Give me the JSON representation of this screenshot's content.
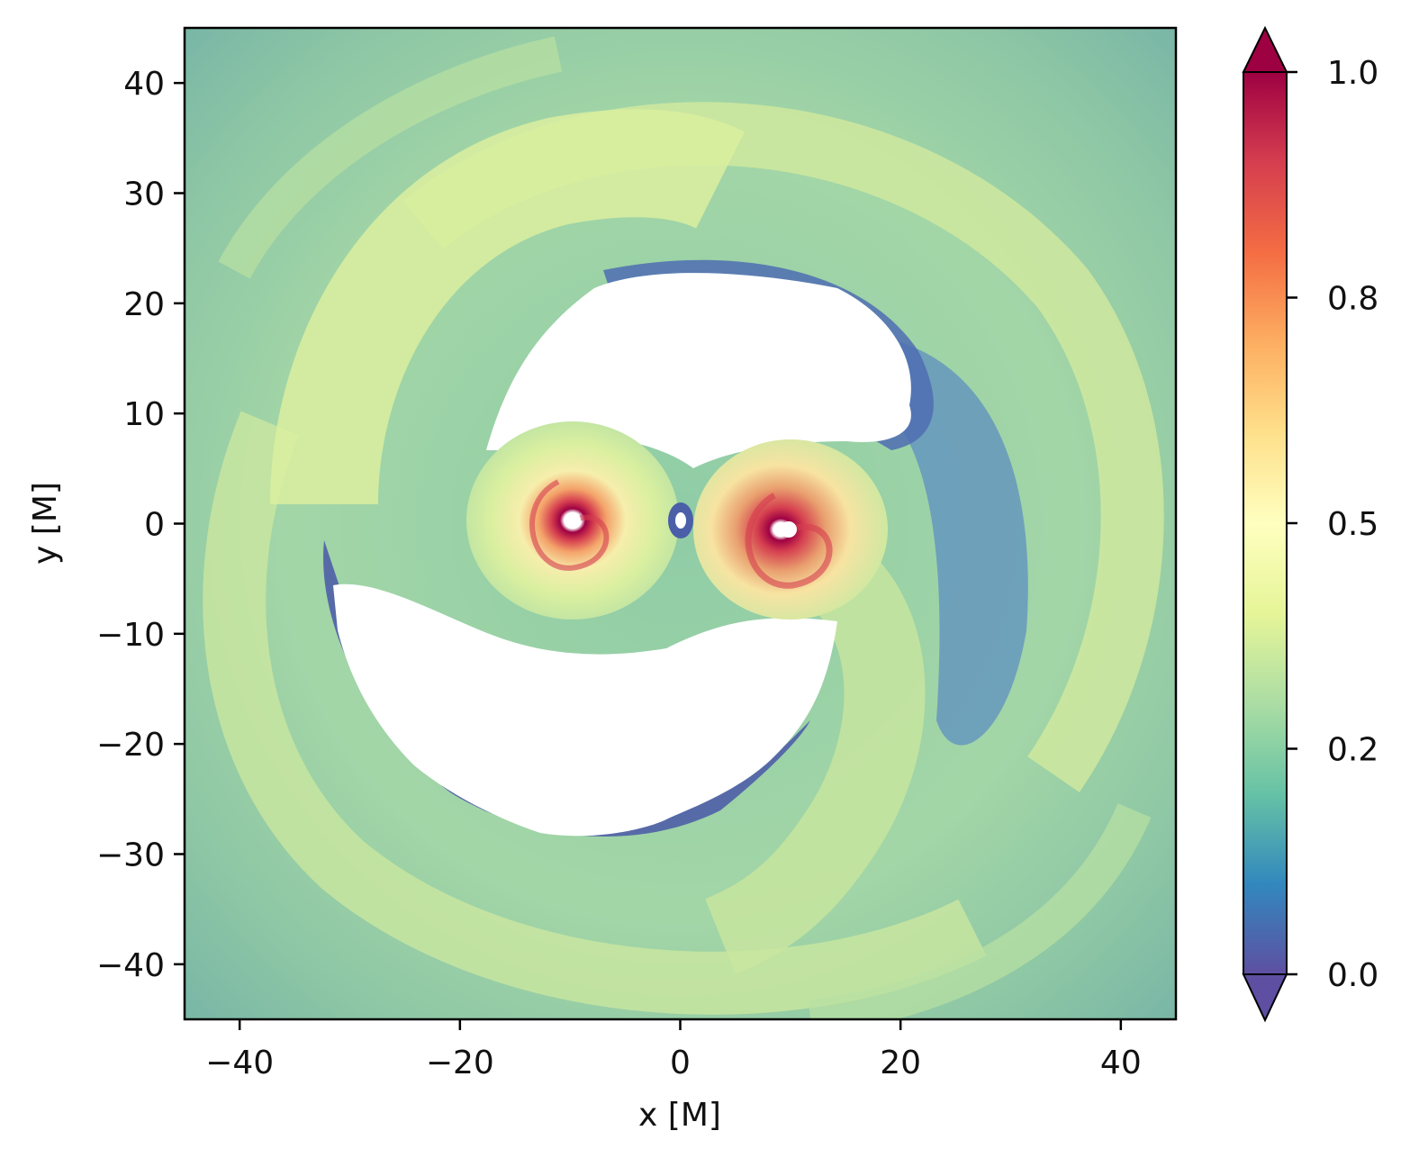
{
  "chart_data": {
    "type": "heatmap",
    "title": "",
    "xlabel": "x [M]",
    "ylabel": "y [M]",
    "xlim": [
      -45,
      45
    ],
    "ylim": [
      -45,
      45
    ],
    "x_ticks": [
      -40,
      -20,
      0,
      20,
      40
    ],
    "x_tick_labels": [
      "−40",
      "−20",
      "0",
      "20",
      "40"
    ],
    "y_ticks": [
      40,
      30,
      20,
      10,
      0,
      -10,
      -20,
      -30,
      -40
    ],
    "y_tick_labels": [
      "40",
      "30",
      "20",
      "10",
      "0",
      "−10",
      "−20",
      "−30",
      "−40"
    ],
    "grid": false,
    "colorbar": {
      "ticks": [
        0.0,
        0.2,
        0.5,
        0.8,
        1.0
      ],
      "tick_labels": [
        "1.0",
        "0.8",
        "0.5",
        "0.2",
        "0.0"
      ],
      "extend": "both",
      "colormap": "Spectral_r",
      "colors": [
        "#5e4fa2",
        "#3288bd",
        "#66c2a5",
        "#abdda4",
        "#e6f598",
        "#ffffbf",
        "#fee08b",
        "#fdae61",
        "#f46d43",
        "#d53e4f",
        "#9e0142"
      ]
    },
    "features": [
      {
        "name": "left black hole mini-disk",
        "x": -10,
        "y": 0,
        "peak_value": 1.0
      },
      {
        "name": "right black hole mini-disk",
        "x": 10,
        "y": -0.5,
        "peak_value": 1.0
      },
      {
        "name": "upper cavity",
        "x": 3,
        "y": 14,
        "value": null
      },
      {
        "name": "lower cavity",
        "x": -4,
        "y": -18,
        "value": null
      }
    ]
  }
}
